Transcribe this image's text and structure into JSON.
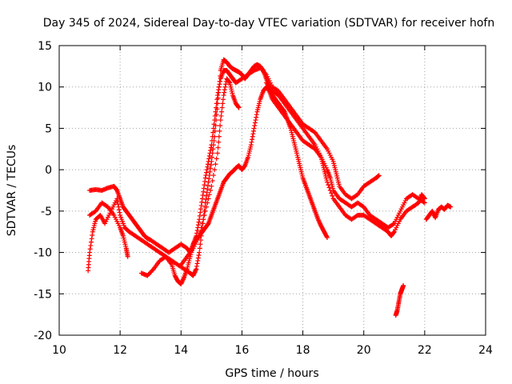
{
  "chart_data": {
    "type": "scatter",
    "title": "Day 345 of 2024, Sidereal Day-to-day VTEC variation (SDTVAR) for receiver hofn",
    "xlabel": "GPS time / hours",
    "ylabel": "SDTVAR / TECUs",
    "xlim": [
      10,
      24
    ],
    "ylim": [
      -20,
      15
    ],
    "xticks": [
      10,
      12,
      14,
      16,
      18,
      20,
      22,
      24
    ],
    "yticks": [
      -20,
      -15,
      -10,
      -5,
      0,
      5,
      10,
      15
    ],
    "grid": true,
    "marker": "+",
    "color": "#ff0000",
    "series": [
      {
        "name": "track-1",
        "points": [
          [
            10.95,
            -12.2
          ],
          [
            11.0,
            -10.0
          ],
          [
            11.1,
            -7.5
          ],
          [
            11.2,
            -6.0
          ],
          [
            11.35,
            -5.5
          ],
          [
            11.5,
            -6.5
          ],
          [
            11.7,
            -5.0
          ],
          [
            11.9,
            -3.5
          ],
          [
            12.0,
            -5.5
          ],
          [
            12.15,
            -7.0
          ],
          [
            12.3,
            -7.5
          ],
          [
            12.5,
            -8.0
          ],
          [
            12.7,
            -8.5
          ],
          [
            12.9,
            -9.0
          ],
          [
            13.1,
            -9.5
          ],
          [
            13.3,
            -10.0
          ],
          [
            13.5,
            -10.5
          ],
          [
            13.7,
            -11.0
          ],
          [
            13.9,
            -11.5
          ],
          [
            14.1,
            -12.0
          ],
          [
            14.3,
            -12.5
          ],
          [
            14.4,
            -12.8
          ],
          [
            14.5,
            -12.0
          ],
          [
            14.6,
            -10.0
          ],
          [
            14.7,
            -7.0
          ],
          [
            14.8,
            -4.0
          ],
          [
            14.9,
            -1.5
          ],
          [
            15.0,
            1.0
          ],
          [
            15.1,
            4.0
          ],
          [
            15.2,
            8.0
          ],
          [
            15.3,
            12.0
          ],
          [
            15.4,
            13.3
          ],
          [
            15.5,
            13.0
          ],
          [
            15.6,
            12.5
          ],
          [
            15.7,
            12.2
          ],
          [
            15.8,
            12.0
          ],
          [
            15.9,
            11.8
          ],
          [
            16.0,
            11.5
          ],
          [
            16.1,
            11.0
          ],
          [
            16.2,
            11.5
          ],
          [
            16.3,
            12.0
          ],
          [
            16.4,
            12.5
          ],
          [
            16.5,
            12.7
          ],
          [
            16.6,
            12.5
          ],
          [
            16.7,
            12.0
          ],
          [
            16.8,
            11.0
          ],
          [
            16.9,
            10.0
          ],
          [
            17.0,
            9.0
          ],
          [
            17.1,
            8.5
          ],
          [
            17.2,
            8.0
          ],
          [
            17.3,
            7.5
          ],
          [
            17.4,
            7.0
          ],
          [
            17.5,
            6.0
          ],
          [
            17.6,
            5.0
          ],
          [
            17.7,
            3.5
          ],
          [
            17.8,
            2.0
          ],
          [
            17.9,
            0.5
          ],
          [
            18.0,
            -1.0
          ],
          [
            18.1,
            -2.0
          ],
          [
            18.2,
            -3.0
          ],
          [
            18.3,
            -4.0
          ],
          [
            18.4,
            -5.0
          ],
          [
            18.5,
            -6.0
          ],
          [
            18.6,
            -6.8
          ],
          [
            18.7,
            -7.5
          ],
          [
            18.8,
            -8.2
          ]
        ]
      },
      {
        "name": "track-2",
        "points": [
          [
            11.0,
            -2.5
          ],
          [
            11.2,
            -2.4
          ],
          [
            11.4,
            -2.5
          ],
          [
            11.6,
            -2.2
          ],
          [
            11.8,
            -2.0
          ],
          [
            11.9,
            -2.5
          ],
          [
            12.0,
            -3.5
          ],
          [
            12.1,
            -4.5
          ],
          [
            12.2,
            -5.0
          ],
          [
            12.3,
            -5.5
          ],
          [
            12.4,
            -6.0
          ],
          [
            12.5,
            -6.5
          ],
          [
            12.6,
            -7.0
          ],
          [
            12.7,
            -7.5
          ],
          [
            12.8,
            -8.0
          ],
          [
            12.9,
            -8.3
          ],
          [
            13.0,
            -8.5
          ],
          [
            13.2,
            -9.0
          ],
          [
            13.4,
            -9.5
          ],
          [
            13.6,
            -10.0
          ],
          [
            13.8,
            -9.5
          ],
          [
            14.0,
            -9.0
          ],
          [
            14.2,
            -9.5
          ],
          [
            14.3,
            -10.0
          ],
          [
            14.4,
            -9.0
          ],
          [
            14.5,
            -8.0
          ],
          [
            14.6,
            -6.0
          ],
          [
            14.7,
            -3.5
          ],
          [
            14.8,
            -1.0
          ],
          [
            14.9,
            1.0
          ],
          [
            15.0,
            3.0
          ],
          [
            15.1,
            6.0
          ],
          [
            15.2,
            9.0
          ],
          [
            15.3,
            11.0
          ],
          [
            15.4,
            12.0
          ],
          [
            15.5,
            12.0
          ],
          [
            15.6,
            11.5
          ],
          [
            15.7,
            11.0
          ],
          [
            15.8,
            10.5
          ],
          [
            16.0,
            11.0
          ],
          [
            16.2,
            11.5
          ],
          [
            16.4,
            12.0
          ],
          [
            16.6,
            12.3
          ],
          [
            16.8,
            11.5
          ],
          [
            17.0,
            10.0
          ],
          [
            17.2,
            9.5
          ],
          [
            17.4,
            8.5
          ],
          [
            17.6,
            7.5
          ],
          [
            17.8,
            6.5
          ],
          [
            18.0,
            5.5
          ],
          [
            18.2,
            5.0
          ],
          [
            18.4,
            4.5
          ],
          [
            18.6,
            3.5
          ],
          [
            18.8,
            2.5
          ],
          [
            19.0,
            1.0
          ],
          [
            19.1,
            -0.5
          ],
          [
            19.2,
            -2.0
          ],
          [
            19.4,
            -3.0
          ],
          [
            19.6,
            -3.5
          ],
          [
            19.8,
            -3.0
          ],
          [
            20.0,
            -2.0
          ],
          [
            20.2,
            -1.5
          ],
          [
            20.4,
            -1.0
          ],
          [
            20.5,
            -0.7
          ]
        ]
      },
      {
        "name": "track-3",
        "points": [
          [
            11.0,
            -5.5
          ],
          [
            11.2,
            -5.0
          ],
          [
            11.4,
            -4.0
          ],
          [
            11.6,
            -4.5
          ],
          [
            11.8,
            -5.5
          ],
          [
            12.0,
            -7.0
          ],
          [
            12.1,
            -8.0
          ],
          [
            12.2,
            -9.5
          ],
          [
            12.25,
            -10.5
          ]
        ]
      },
      {
        "name": "track-4",
        "points": [
          [
            12.7,
            -12.5
          ],
          [
            12.9,
            -12.8
          ],
          [
            13.1,
            -12.0
          ],
          [
            13.3,
            -11.0
          ],
          [
            13.5,
            -10.5
          ],
          [
            13.7,
            -11.5
          ],
          [
            13.8,
            -12.8
          ],
          [
            13.9,
            -13.5
          ],
          [
            14.0,
            -13.8
          ],
          [
            14.1,
            -13.0
          ],
          [
            14.2,
            -12.0
          ],
          [
            14.3,
            -10.5
          ],
          [
            14.4,
            -9.0
          ],
          [
            14.5,
            -8.5
          ],
          [
            14.6,
            -8.0
          ],
          [
            14.7,
            -7.5
          ],
          [
            14.8,
            -7.0
          ],
          [
            14.9,
            -6.5
          ],
          [
            15.0,
            -5.5
          ],
          [
            15.1,
            -4.5
          ],
          [
            15.2,
            -3.5
          ],
          [
            15.3,
            -2.5
          ],
          [
            15.4,
            -1.5
          ],
          [
            15.5,
            -1.0
          ],
          [
            15.6,
            -0.5
          ],
          [
            15.7,
            -0.2
          ],
          [
            15.8,
            0.2
          ],
          [
            15.9,
            0.5
          ],
          [
            16.0,
            0.0
          ],
          [
            16.1,
            0.5
          ],
          [
            16.2,
            1.5
          ],
          [
            16.3,
            3.0
          ],
          [
            16.4,
            5.0
          ],
          [
            16.5,
            7.0
          ],
          [
            16.6,
            8.5
          ],
          [
            16.7,
            9.5
          ],
          [
            16.8,
            10.0
          ],
          [
            16.9,
            9.5
          ],
          [
            17.0,
            8.5
          ],
          [
            17.2,
            7.5
          ],
          [
            17.4,
            6.5
          ],
          [
            17.6,
            5.5
          ],
          [
            17.8,
            4.5
          ],
          [
            18.0,
            3.5
          ],
          [
            18.2,
            3.0
          ],
          [
            18.4,
            2.5
          ],
          [
            18.6,
            1.5
          ],
          [
            18.8,
            0.0
          ],
          [
            18.9,
            -1.0
          ],
          [
            19.0,
            -2.5
          ],
          [
            19.2,
            -3.5
          ],
          [
            19.4,
            -4.0
          ],
          [
            19.6,
            -4.5
          ],
          [
            19.8,
            -4.0
          ],
          [
            20.0,
            -4.5
          ],
          [
            20.2,
            -5.5
          ],
          [
            20.4,
            -6.0
          ],
          [
            20.6,
            -6.5
          ],
          [
            20.8,
            -7.0
          ],
          [
            21.0,
            -6.5
          ],
          [
            21.2,
            -5.0
          ],
          [
            21.4,
            -3.5
          ],
          [
            21.6,
            -3.0
          ],
          [
            21.8,
            -3.5
          ],
          [
            22.0,
            -4.0
          ]
        ]
      },
      {
        "name": "track-5",
        "points": [
          [
            14.0,
            -11.5
          ],
          [
            14.2,
            -10.5
          ],
          [
            14.4,
            -9.5
          ],
          [
            14.6,
            -8.0
          ],
          [
            14.8,
            -5.0
          ],
          [
            15.0,
            -2.0
          ],
          [
            15.2,
            2.0
          ],
          [
            15.3,
            6.0
          ],
          [
            15.4,
            9.0
          ],
          [
            15.5,
            11.0
          ],
          [
            15.6,
            10.5
          ],
          [
            15.7,
            9.0
          ],
          [
            15.8,
            8.0
          ],
          [
            15.9,
            7.5
          ]
        ]
      },
      {
        "name": "track-6",
        "points": [
          [
            16.8,
            10.5
          ],
          [
            17.0,
            9.5
          ],
          [
            17.2,
            9.0
          ],
          [
            17.4,
            8.0
          ],
          [
            17.6,
            7.0
          ],
          [
            17.8,
            6.0
          ],
          [
            18.0,
            5.0
          ],
          [
            18.2,
            4.0
          ],
          [
            18.4,
            3.0
          ],
          [
            18.6,
            1.5
          ],
          [
            18.7,
            0.0
          ],
          [
            18.8,
            -1.5
          ],
          [
            19.0,
            -3.5
          ],
          [
            19.2,
            -4.5
          ],
          [
            19.4,
            -5.5
          ],
          [
            19.6,
            -6.0
          ],
          [
            19.8,
            -5.5
          ],
          [
            20.0,
            -5.5
          ],
          [
            20.2,
            -6.0
          ],
          [
            20.4,
            -6.5
          ],
          [
            20.6,
            -7.0
          ],
          [
            20.8,
            -7.5
          ],
          [
            20.9,
            -8.0
          ],
          [
            21.0,
            -7.5
          ],
          [
            21.2,
            -6.0
          ],
          [
            21.4,
            -5.0
          ],
          [
            21.6,
            -4.5
          ],
          [
            21.8,
            -4.0
          ],
          [
            21.9,
            -3.0
          ],
          [
            22.0,
            -3.5
          ]
        ]
      },
      {
        "name": "track-7",
        "points": [
          [
            21.05,
            -17.6
          ],
          [
            21.1,
            -17.0
          ],
          [
            21.15,
            -16.0
          ],
          [
            21.2,
            -15.0
          ],
          [
            21.25,
            -14.5
          ],
          [
            21.3,
            -14.0
          ]
        ]
      },
      {
        "name": "track-8",
        "points": [
          [
            22.05,
            -6.0
          ],
          [
            22.15,
            -5.5
          ],
          [
            22.25,
            -5.0
          ],
          [
            22.35,
            -5.8
          ],
          [
            22.45,
            -4.8
          ],
          [
            22.55,
            -4.5
          ],
          [
            22.65,
            -4.8
          ],
          [
            22.75,
            -4.3
          ],
          [
            22.85,
            -4.5
          ]
        ]
      }
    ]
  }
}
